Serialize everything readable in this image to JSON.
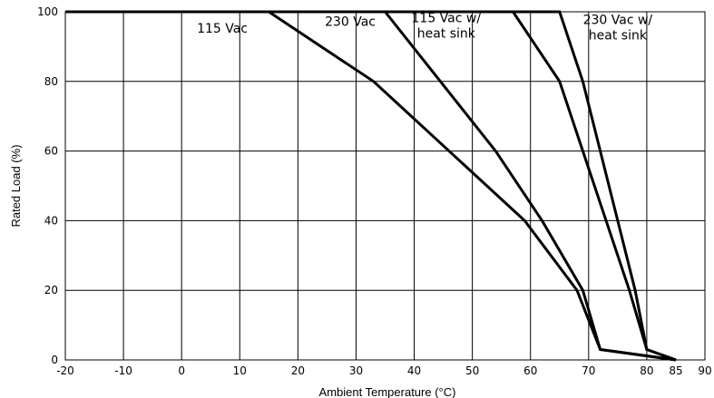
{
  "chart_data": {
    "type": "line",
    "title": "",
    "xlabel": "Ambient Temperature (°C)",
    "ylabel": "Rated Load (%)",
    "xlim": [
      -20,
      90
    ],
    "ylim": [
      0,
      100
    ],
    "x_ticks": [
      -20,
      -10,
      0,
      10,
      20,
      30,
      40,
      50,
      60,
      70,
      80,
      85,
      90
    ],
    "y_ticks": [
      0,
      20,
      40,
      60,
      80,
      100
    ],
    "grid": true,
    "series": [
      {
        "name": "115 Vac",
        "points": [
          [
            -20,
            100
          ],
          [
            15,
            100
          ],
          [
            33,
            80
          ],
          [
            59,
            40
          ],
          [
            68,
            20
          ],
          [
            72,
            3
          ],
          [
            85,
            0
          ]
        ]
      },
      {
        "name": "230 Vac",
        "points": [
          [
            -20,
            100
          ],
          [
            35,
            100
          ],
          [
            54,
            60
          ],
          [
            62,
            40
          ],
          [
            69,
            20
          ],
          [
            72,
            3
          ],
          [
            85,
            0
          ]
        ]
      },
      {
        "name": "115 Vac w/ heat sink",
        "points": [
          [
            -20,
            100
          ],
          [
            57,
            100
          ],
          [
            65,
            80
          ],
          [
            77,
            20
          ],
          [
            80,
            3
          ],
          [
            85,
            0
          ]
        ]
      },
      {
        "name": "230 Vac w/ heat sink",
        "points": [
          [
            -20,
            100
          ],
          [
            65,
            100
          ],
          [
            69,
            80
          ],
          [
            78,
            20
          ],
          [
            80,
            3
          ],
          [
            85,
            0
          ]
        ]
      }
    ],
    "annotations": [
      {
        "lines": [
          "115 Vac"
        ],
        "x": 7,
        "y": 94
      },
      {
        "lines": [
          "230 Vac"
        ],
        "x": 29,
        "y": 96
      },
      {
        "lines": [
          "115 Vac w/",
          "heat sink"
        ],
        "x": 45.5,
        "y": 97
      },
      {
        "lines": [
          "230 Vac w/",
          "heat sink"
        ],
        "x": 75,
        "y": 96.5
      }
    ]
  }
}
